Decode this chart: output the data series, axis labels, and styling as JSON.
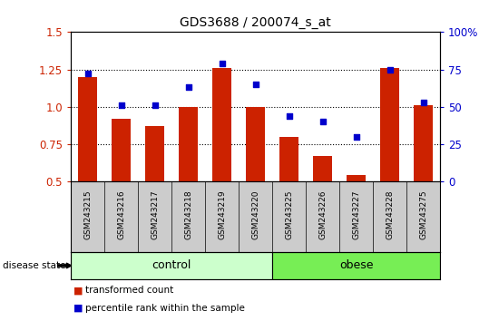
{
  "title": "GDS3688 / 200074_s_at",
  "categories": [
    "GSM243215",
    "GSM243216",
    "GSM243217",
    "GSM243218",
    "GSM243219",
    "GSM243220",
    "GSM243225",
    "GSM243226",
    "GSM243227",
    "GSM243228",
    "GSM243275"
  ],
  "bar_values": [
    1.2,
    0.92,
    0.87,
    1.0,
    1.26,
    1.0,
    0.8,
    0.67,
    0.54,
    1.26,
    1.01
  ],
  "scatter_values": [
    72,
    51,
    51,
    63,
    79,
    65,
    44,
    40,
    30,
    75,
    53
  ],
  "ylim_left": [
    0.5,
    1.5
  ],
  "ylim_right": [
    0,
    100
  ],
  "yticks_left": [
    0.5,
    0.75,
    1.0,
    1.25,
    1.5
  ],
  "yticks_right": [
    0,
    25,
    50,
    75,
    100
  ],
  "ytick_labels_right": [
    "0",
    "25",
    "50",
    "75",
    "100%"
  ],
  "bar_color": "#CC2200",
  "scatter_color": "#0000CC",
  "control_indices": [
    0,
    1,
    2,
    3,
    4,
    5
  ],
  "obese_indices": [
    6,
    7,
    8,
    9,
    10
  ],
  "control_label": "control",
  "obese_label": "obese",
  "disease_state_label": "disease state",
  "legend_bar_label": "transformed count",
  "legend_scatter_label": "percentile rank within the sample",
  "control_color": "#CCFFCC",
  "obese_color": "#77EE55",
  "xticklabel_area_color": "#CCCCCC",
  "dotted_levels": [
    0.75,
    1.0,
    1.25
  ]
}
